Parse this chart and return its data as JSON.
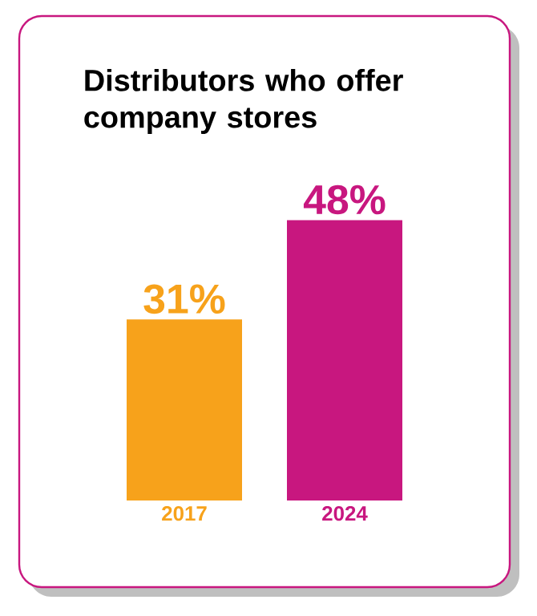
{
  "chart_data": {
    "type": "bar",
    "title": "Distributors who offer company stores",
    "categories": [
      "2017",
      "2024"
    ],
    "values": [
      31,
      48
    ],
    "colors": [
      "#f7a21b",
      "#c8177f"
    ],
    "value_labels": [
      "31%",
      "48%"
    ]
  }
}
